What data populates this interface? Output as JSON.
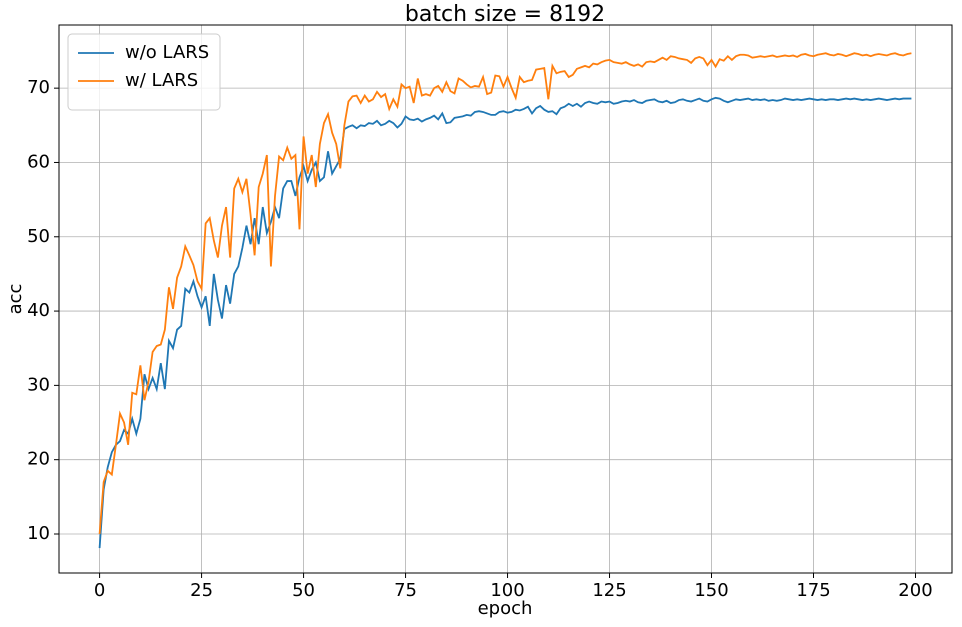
{
  "chart_data": {
    "type": "line",
    "title": "batch size = 8192",
    "x_label": "epoch",
    "y_label": "acc",
    "x": [
      0,
      1,
      2,
      3,
      4,
      5,
      6,
      7,
      8,
      9,
      10,
      11,
      12,
      13,
      14,
      15,
      16,
      17,
      18,
      19,
      20,
      21,
      22,
      23,
      24,
      25,
      26,
      27,
      28,
      29,
      30,
      31,
      32,
      33,
      34,
      35,
      36,
      37,
      38,
      39,
      40,
      41,
      42,
      43,
      44,
      45,
      46,
      47,
      48,
      49,
      50,
      51,
      52,
      53,
      54,
      55,
      56,
      57,
      58,
      59,
      60,
      61,
      62,
      63,
      64,
      65,
      66,
      67,
      68,
      69,
      70,
      71,
      72,
      73,
      74,
      75,
      76,
      77,
      78,
      79,
      80,
      81,
      82,
      83,
      84,
      85,
      86,
      87,
      88,
      89,
      90,
      91,
      92,
      93,
      94,
      95,
      96,
      97,
      98,
      99,
      100,
      101,
      102,
      103,
      104,
      105,
      106,
      107,
      108,
      109,
      110,
      111,
      112,
      113,
      114,
      115,
      116,
      117,
      118,
      119,
      120,
      121,
      122,
      123,
      124,
      125,
      126,
      127,
      128,
      129,
      130,
      131,
      132,
      133,
      134,
      135,
      136,
      137,
      138,
      139,
      140,
      141,
      142,
      143,
      144,
      145,
      146,
      147,
      148,
      149,
      150,
      151,
      152,
      153,
      154,
      155,
      156,
      157,
      158,
      159,
      160,
      161,
      162,
      163,
      164,
      165,
      166,
      167,
      168,
      169,
      170,
      171,
      172,
      173,
      174,
      175,
      176,
      177,
      178,
      179,
      180,
      181,
      182,
      183,
      184,
      185,
      186,
      187,
      188,
      189,
      190,
      191,
      192,
      193,
      194,
      195,
      196,
      197,
      198,
      199
    ],
    "series": [
      {
        "name": "w/o LARS",
        "color": "#1f77b4",
        "values": [
          8.1,
          16,
          19,
          21,
          22,
          22.5,
          24,
          23.5,
          25.5,
          23.5,
          25.5,
          31.5,
          29.5,
          31,
          29.5,
          33,
          29.5,
          36,
          35,
          37.5,
          38,
          43,
          42.5,
          44,
          42,
          40.5,
          42,
          38,
          45,
          41.5,
          39,
          43.5,
          41,
          45,
          46,
          48.5,
          51.5,
          49,
          52.5,
          49,
          54,
          50.5,
          52,
          54,
          52.5,
          56.5,
          57.5,
          57.5,
          55.5,
          58,
          59.5,
          57.5,
          59,
          60,
          57.5,
          58,
          61.5,
          58.5,
          59.5,
          60.5,
          64.5,
          64.8,
          65,
          64.6,
          65,
          64.9,
          65.3,
          65.2,
          65.6,
          65,
          65.2,
          65.6,
          65.3,
          64.7,
          65.2,
          66.2,
          65.8,
          65.7,
          65.9,
          65.5,
          65.8,
          66,
          66.3,
          65.8,
          66.6,
          65.3,
          65.4,
          66,
          66.1,
          66.2,
          66.4,
          66.3,
          66.8,
          66.9,
          66.8,
          66.6,
          66.4,
          66.4,
          66.8,
          66.9,
          66.7,
          66.8,
          67.1,
          67,
          67.2,
          67.5,
          66.6,
          67.3,
          67.6,
          67.1,
          66.8,
          66.9,
          66.5,
          67.3,
          67.5,
          67.9,
          67.6,
          67.9,
          67.5,
          68,
          68.2,
          68,
          67.9,
          68.2,
          68.1,
          68.2,
          67.9,
          68,
          68.2,
          68.3,
          68.2,
          68.4,
          68.1,
          68,
          68.3,
          68.4,
          68.5,
          68.2,
          68.1,
          68.3,
          68,
          68.1,
          68.4,
          68.5,
          68.3,
          68.2,
          68.4,
          68.6,
          68.3,
          68.2,
          68.5,
          68.7,
          68.6,
          68.3,
          68.1,
          68.3,
          68.5,
          68.4,
          68.5,
          68.6,
          68.4,
          68.5,
          68.4,
          68.5,
          68.3,
          68.4,
          68.3,
          68.4,
          68.6,
          68.5,
          68.4,
          68.5,
          68.4,
          68.5,
          68.6,
          68.5,
          68.4,
          68.5,
          68.4,
          68.5,
          68.5,
          68.4,
          68.5,
          68.6,
          68.5,
          68.6,
          68.5,
          68.4,
          68.5,
          68.4,
          68.5,
          68.6,
          68.5,
          68.4,
          68.5,
          68.6,
          68.5,
          68.6,
          68.6,
          68.6
        ]
      },
      {
        "name": "w/ LARS",
        "color": "#ff7f0e",
        "values": [
          10,
          17,
          18.5,
          18,
          22,
          26.2,
          25,
          22,
          29,
          28.8,
          32.7,
          28,
          30.5,
          34.5,
          35.3,
          35.5,
          37.5,
          43.2,
          40.3,
          44.5,
          46,
          48.7,
          47.5,
          46.2,
          44,
          43,
          51.8,
          52.5,
          49.5,
          47.2,
          51.5,
          54,
          47.2,
          56.5,
          57.8,
          56,
          57.8,
          53,
          47.5,
          56.7,
          58.5,
          61,
          46,
          55.5,
          60.8,
          60.3,
          62,
          60.5,
          61,
          51,
          63.5,
          58.5,
          61,
          56.7,
          62.5,
          65.3,
          66.5,
          64,
          62.5,
          59.2,
          65,
          68.2,
          68.9,
          69,
          68,
          69,
          68.2,
          68.5,
          69.5,
          68.8,
          69.2,
          67.2,
          68.5,
          67.5,
          70.5,
          70,
          70.2,
          68,
          71.3,
          69,
          69.2,
          69,
          70,
          70.3,
          69.5,
          70.8,
          69.6,
          69.3,
          71.3,
          71,
          70.5,
          70.1,
          70.3,
          70.2,
          71.5,
          69.2,
          69.4,
          71.7,
          71.6,
          70.2,
          71.5,
          70,
          68.7,
          71.5,
          70.8,
          71,
          71.1,
          72.5,
          72.6,
          72.7,
          68.5,
          73,
          72,
          72.2,
          72.3,
          71.5,
          71.8,
          72.6,
          72.8,
          73,
          72.8,
          73.3,
          73.2,
          73.5,
          73.7,
          73.8,
          73.5,
          73.4,
          73.3,
          73.5,
          73.2,
          73,
          73.2,
          72.9,
          73.5,
          73.6,
          73.5,
          73.8,
          74.1,
          73.8,
          74.3,
          74.2,
          74,
          73.9,
          73.8,
          73.4,
          74,
          74.2,
          74,
          73.1,
          73.8,
          72.9,
          73.9,
          73.7,
          74.3,
          73.8,
          74.3,
          74.5,
          74.5,
          74.4,
          74.1,
          74.2,
          74.3,
          74.2,
          74.3,
          74.4,
          74.2,
          74.3,
          74.4,
          74.3,
          74.4,
          74.2,
          74.5,
          74.6,
          74.4,
          74.3,
          74.5,
          74.6,
          74.7,
          74.5,
          74.4,
          74.6,
          74.5,
          74.3,
          74.5,
          74.7,
          74.6,
          74.4,
          74.5,
          74.3,
          74.5,
          74.6,
          74.5,
          74.4,
          74.6,
          74.7,
          74.5,
          74.4,
          74.6,
          74.7
        ]
      }
    ],
    "xlim": [
      -9.95,
      208.95
    ],
    "xticks": [
      0,
      25,
      50,
      75,
      100,
      125,
      150,
      175,
      200
    ],
    "ylim": [
      4.75,
      78.5
    ],
    "yticks": [
      10,
      20,
      30,
      40,
      50,
      60,
      70
    ],
    "grid": true,
    "legend": "upper left"
  }
}
